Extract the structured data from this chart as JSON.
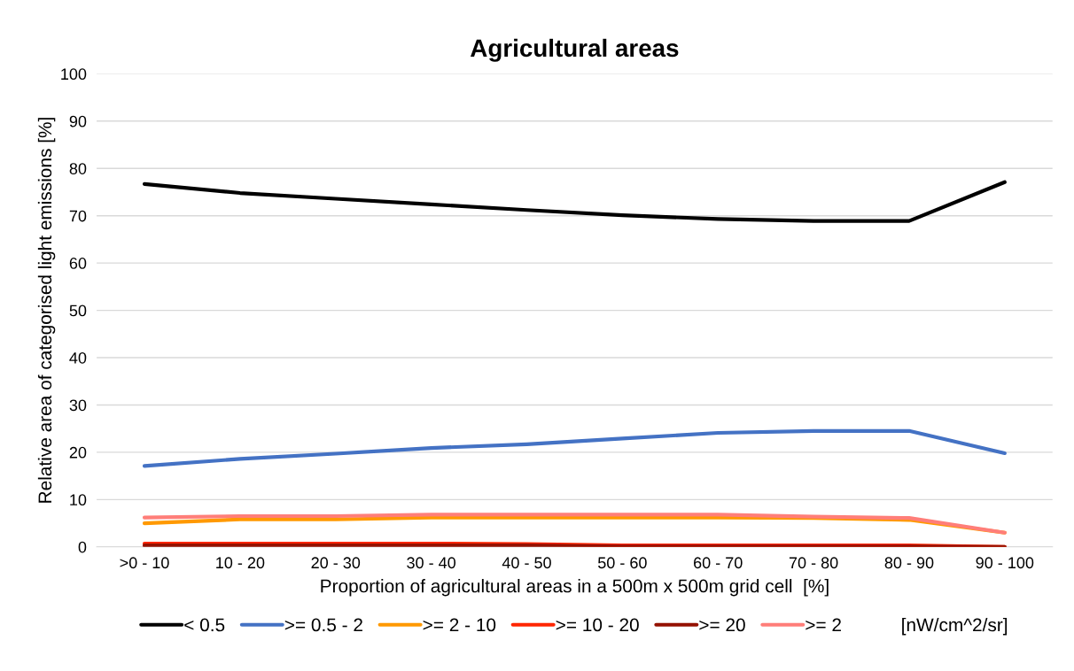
{
  "chart_data": {
    "type": "line",
    "title": "Agricultural areas",
    "xlabel": "Proportion of agricultural areas in a 500m x 500m grid cell  [%]",
    "ylabel": "Relative area of categorised light emissions [%]",
    "legend_title": "[nW/cm^2/sr]",
    "categories": [
      ">0 - 10",
      "10 - 20",
      "20 - 30",
      "30 - 40",
      "40 - 50",
      "50 - 60",
      "60 - 70",
      "70 - 80",
      "80 - 90",
      "90 - 100"
    ],
    "series": [
      {
        "name": "< 0.5",
        "color": "#000000",
        "values": [
          76.7,
          74.8,
          73.6,
          72.4,
          71.2,
          70.1,
          69.3,
          68.9,
          68.9,
          77.1
        ]
      },
      {
        "name": ">= 0.5 - 2",
        "color": "#4472c4",
        "values": [
          17.1,
          18.6,
          19.7,
          20.9,
          21.7,
          22.9,
          24.1,
          24.5,
          24.5,
          19.8
        ]
      },
      {
        "name": ">= 2 - 10",
        "color": "#ff9900",
        "values": [
          5.0,
          5.8,
          5.8,
          6.2,
          6.2,
          6.2,
          6.2,
          6.1,
          5.7,
          3.0
        ]
      },
      {
        "name": ">= 10 - 20",
        "color": "#ff2600",
        "values": [
          0.7,
          0.7,
          0.7,
          0.7,
          0.6,
          0.3,
          0.3,
          0.3,
          0.3,
          0.0
        ]
      },
      {
        "name": ">= 20",
        "color": "#941100",
        "values": [
          0.3,
          0.3,
          0.3,
          0.3,
          0.3,
          0.1,
          0.1,
          0.1,
          0.1,
          0.0
        ]
      },
      {
        "name": ">= 2",
        "color": "#ff7e79",
        "values": [
          6.2,
          6.5,
          6.5,
          6.8,
          6.8,
          6.8,
          6.8,
          6.4,
          6.1,
          3.0
        ]
      }
    ],
    "ylim": [
      0,
      100
    ],
    "yticks": [
      0,
      10,
      20,
      30,
      40,
      50,
      60,
      70,
      80,
      90,
      100
    ],
    "grid": "y",
    "legend": "bottom",
    "marker": "none",
    "line_style": "solid"
  }
}
